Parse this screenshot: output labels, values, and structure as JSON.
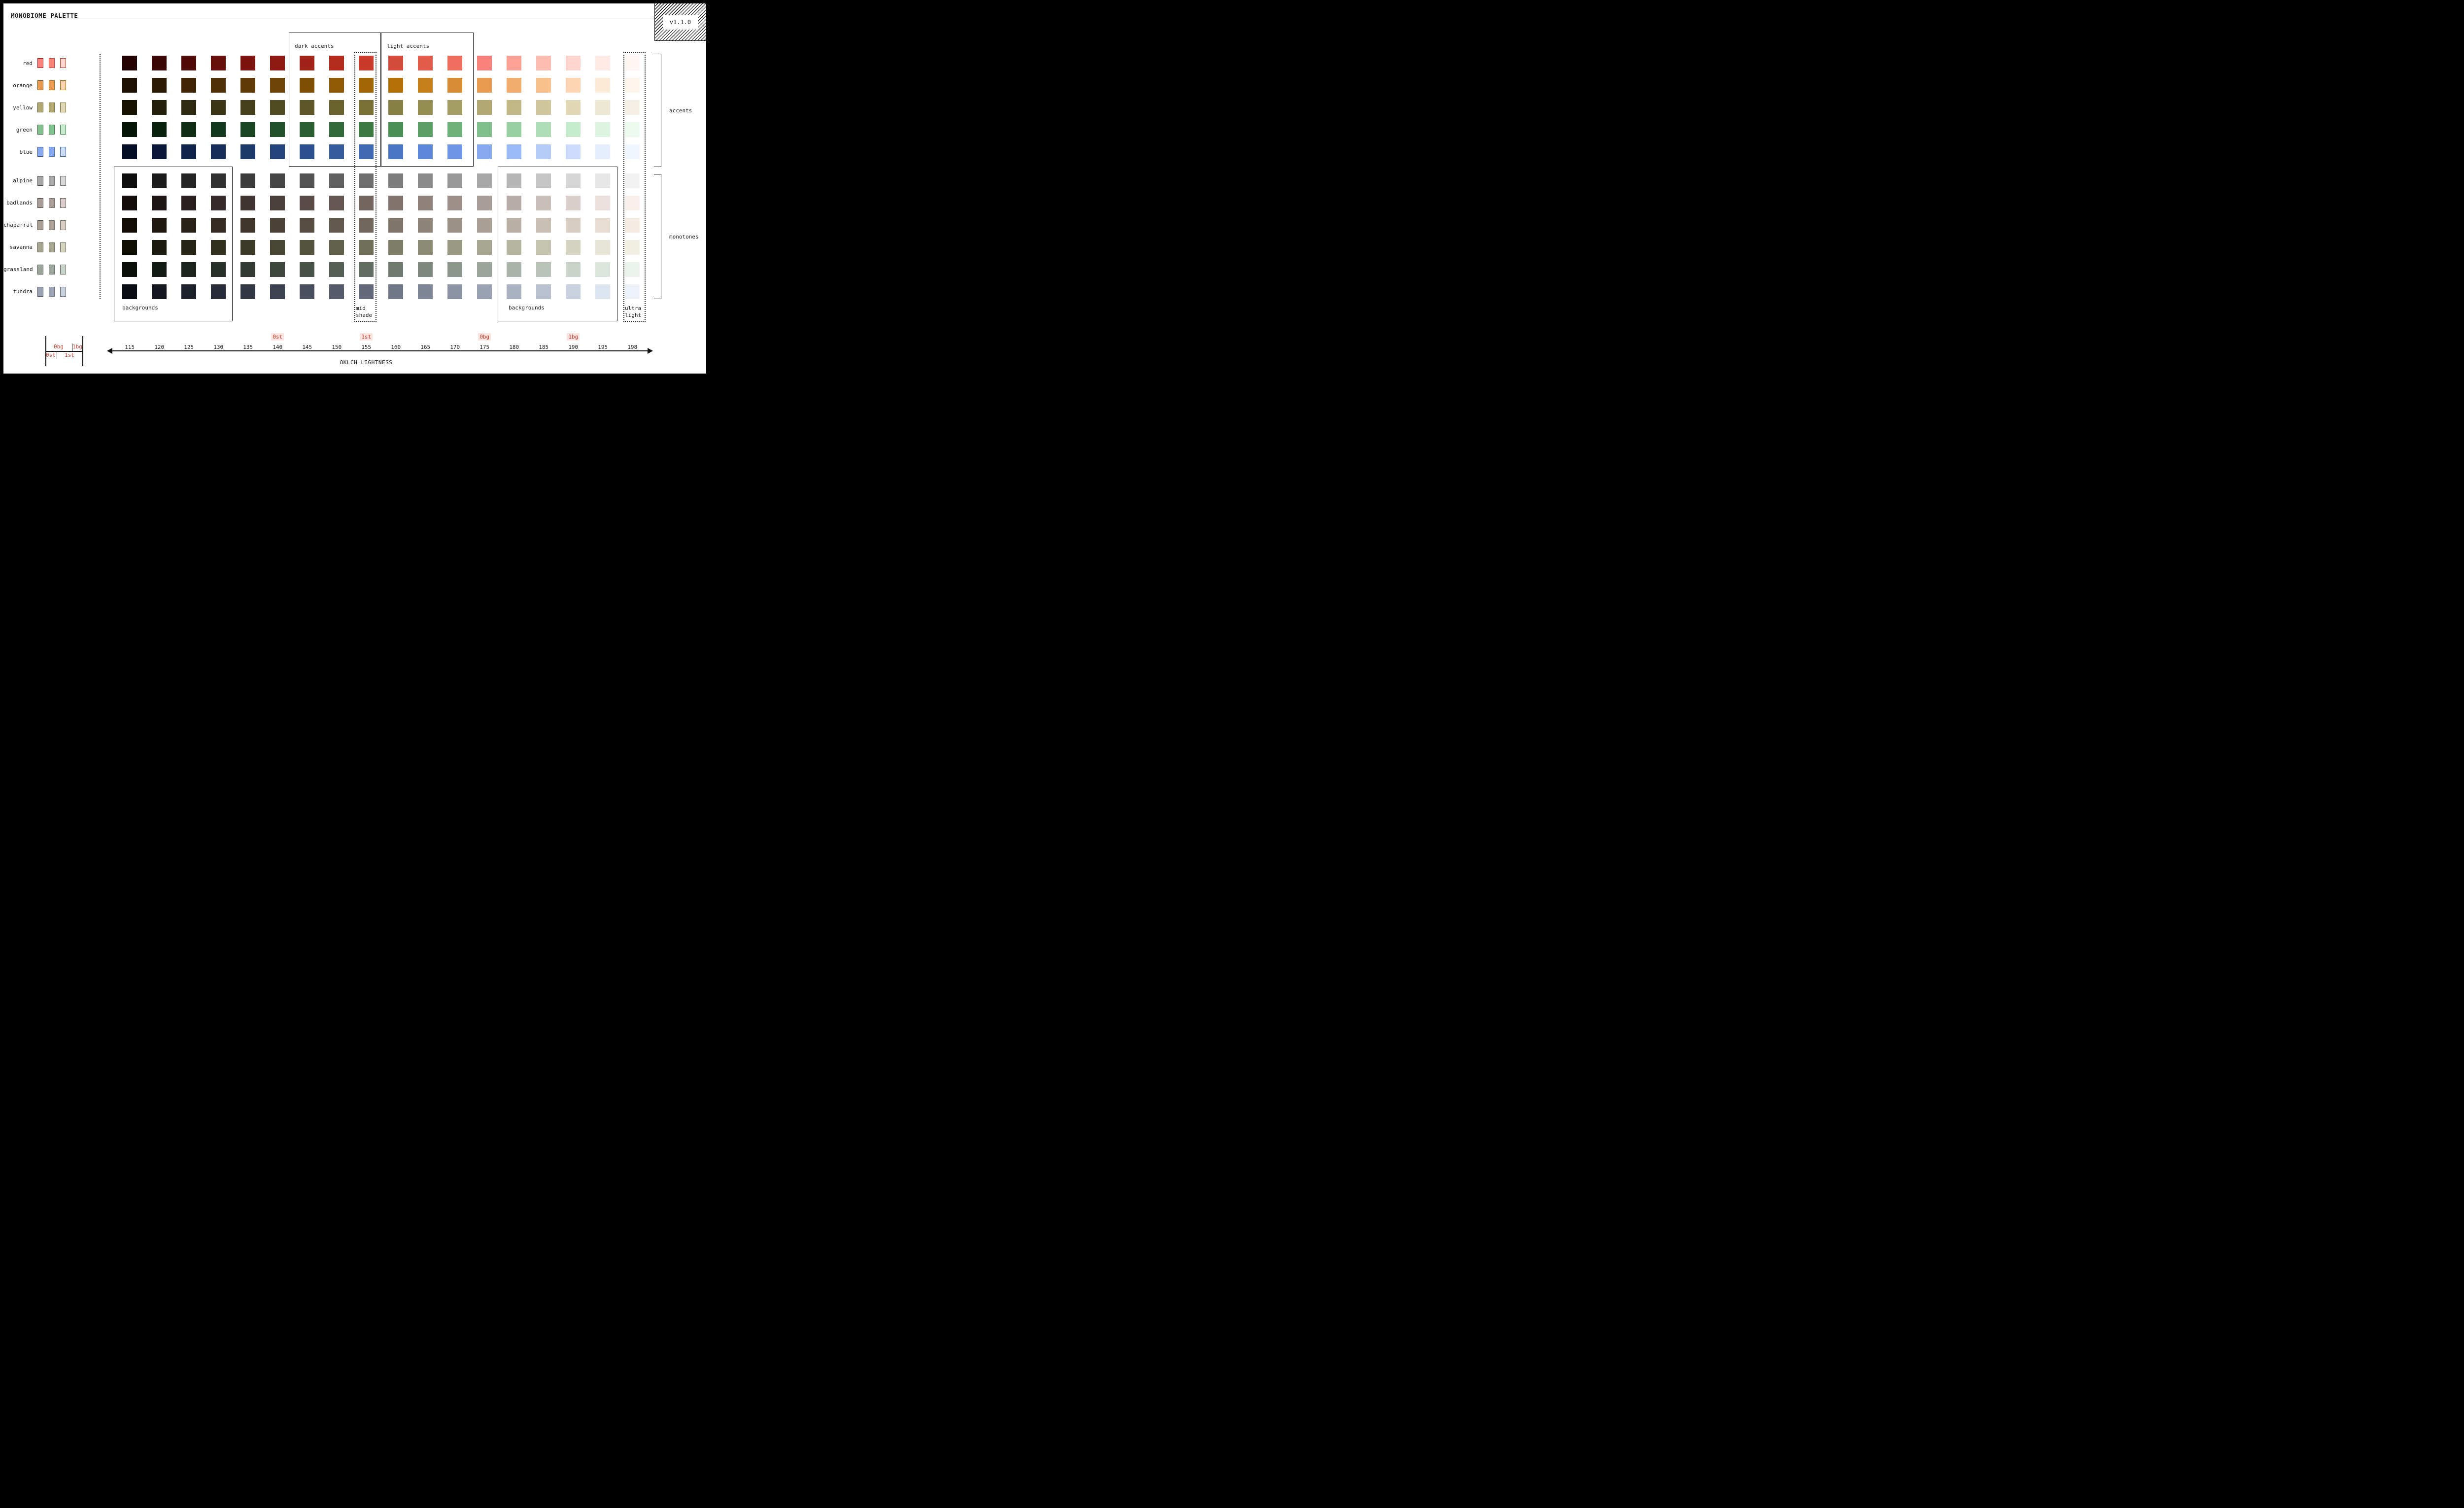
{
  "title": "MONOBIOME PALETTE",
  "version": "v1.1.0",
  "axis": {
    "label": "OKLCH LIGHTNESS",
    "ticks": [
      "115",
      "120",
      "125",
      "130",
      "135",
      "140",
      "145",
      "150",
      "155",
      "160",
      "165",
      "170",
      "175",
      "180",
      "185",
      "190",
      "195",
      "198"
    ],
    "highlights": [
      {
        "label": "0st",
        "tick": "140"
      },
      {
        "label": "1st",
        "tick": "155"
      },
      {
        "label": "0bg",
        "tick": "175"
      },
      {
        "label": "1bg",
        "tick": "190"
      }
    ]
  },
  "groups": {
    "accents_label": "accents",
    "monotones_label": "monotones",
    "dark_accents_label": "dark accents",
    "light_accents_label": "light accents",
    "backgrounds_left_label": "backgrounds",
    "backgrounds_right_label": "backgrounds",
    "mid_shade_label": "mid shade",
    "ultra_light_label": "ultra light"
  },
  "legend": {
    "top": [
      "0bg",
      "1bg"
    ],
    "bottom": [
      "0st",
      "1st"
    ]
  },
  "colors": {
    "ink": "#1a1a1a",
    "highlight_text": "#c5392a",
    "highlight_bg": "#fbe3df",
    "dotted": "#222222"
  },
  "chart_data": {
    "type": "heatmap",
    "title": "MONOBIOME PALETTE",
    "xlabel": "OKLCH LIGHTNESS",
    "x": [
      115,
      120,
      125,
      130,
      135,
      140,
      145,
      150,
      155,
      160,
      165,
      170,
      175,
      180,
      185,
      190,
      195,
      198
    ],
    "key_lightness": {
      "0st": 140,
      "1st": 155,
      "0bg": 175,
      "1bg": 190
    },
    "small_swatches": {
      "fill_cols": [
        175,
        175,
        190
      ],
      "border_cols": [
        140,
        155,
        155
      ]
    },
    "series": [
      {
        "name": "red",
        "group": "accents",
        "colors": [
          "#230303",
          "#3a0706",
          "#500b08",
          "#660f0b",
          "#7c130e",
          "#8e1a12",
          "#a02317",
          "#b42b1e",
          "#c93a2b",
          "#d54b3b",
          "#e25a4a",
          "#ee6f5f",
          "#f9837a",
          "#fda195",
          "#ffbcb1",
          "#ffd5cd",
          "#ffeae6",
          "#fff6f4"
        ]
      },
      {
        "name": "orange",
        "group": "accents",
        "colors": [
          "#1d1102",
          "#2e1b04",
          "#3f2506",
          "#503007",
          "#603a07",
          "#6f4406",
          "#7f4f05",
          "#905a04",
          "#a16503",
          "#b57107",
          "#c67e1b",
          "#d78c33",
          "#e89b51",
          "#f2ad6e",
          "#f9c18e",
          "#fcd5b2",
          "#fdead6",
          "#fdf4ec"
        ]
      },
      {
        "name": "yellow",
        "group": "accents",
        "colors": [
          "#161303",
          "#22200b",
          "#2e2a11",
          "#3a3516",
          "#45401b",
          "#504b21",
          "#5d5727",
          "#6a632d",
          "#787034",
          "#868044",
          "#948e53",
          "#a39c63",
          "#b3a871",
          "#c2b885",
          "#d1c79c",
          "#dfd7b6",
          "#ede8d4",
          "#f4f0e5"
        ]
      },
      {
        "name": "green",
        "group": "accents",
        "colors": [
          "#041607",
          "#09220f",
          "#0f2e15",
          "#15391c",
          "#1b4522",
          "#225129",
          "#2a5e31",
          "#326b3a",
          "#3c7a44",
          "#4a8f56",
          "#5b9f66",
          "#6db07a",
          "#80c08c",
          "#97cfa1",
          "#aeddb6",
          "#c6eacc",
          "#def4e2",
          "#edfaf0"
        ]
      },
      {
        "name": "blue",
        "group": "accents",
        "colors": [
          "#050e27",
          "#0a1837",
          "#102348",
          "#162e59",
          "#1d3969",
          "#24447b",
          "#2c508d",
          "#355c9f",
          "#3f69b2",
          "#4b76c5",
          "#5c86d8",
          "#7097e7",
          "#86a9f0",
          "#9cbaf6",
          "#b4cbfa",
          "#cddcfc",
          "#e4edfd",
          "#f1f6fe"
        ]
      },
      {
        "name": "alpine",
        "group": "monotones",
        "colors": [
          "#0f0f0f",
          "#1b1b1b",
          "#262626",
          "#313132",
          "#3c3c3d",
          "#474748",
          "#535354",
          "#616162",
          "#6f6f70",
          "#7d7d7e",
          "#8b8b8c",
          "#99999a",
          "#a8a8a9",
          "#b7b7b8",
          "#c6c6c7",
          "#d6d6d6",
          "#e7e7e7",
          "#f2f2f2"
        ]
      },
      {
        "name": "badlands",
        "group": "monotones",
        "colors": [
          "#120c0b",
          "#1e1615",
          "#29201f",
          "#342a29",
          "#3f3432",
          "#4b3f3c",
          "#584b48",
          "#655854",
          "#736560",
          "#81736e",
          "#8f817c",
          "#9d8f8a",
          "#a99d9a",
          "#b8aca9",
          "#c9bdba",
          "#d9cecc",
          "#ebe0de",
          "#f8eeec"
        ]
      },
      {
        "name": "chaparral",
        "group": "monotones",
        "colors": [
          "#120e07",
          "#1e1810",
          "#292219",
          "#342c22",
          "#3f372c",
          "#4a4236",
          "#574e42",
          "#645b4f",
          "#72695c",
          "#80766a",
          "#8e8478",
          "#9c9286",
          "#aaa095",
          "#b9afa4",
          "#c8beb3",
          "#d7cdc2",
          "#e8ded4",
          "#f4ebe2"
        ]
      },
      {
        "name": "savanna",
        "group": "monotones",
        "colors": [
          "#100f05",
          "#1b1a0e",
          "#262516",
          "#31301e",
          "#3c3b28",
          "#474633",
          "#54533e",
          "#61604a",
          "#6f6e57",
          "#7d7c64",
          "#8b8a72",
          "#999881",
          "#a7a690",
          "#b6b59f",
          "#c5c4af",
          "#d4d3c0",
          "#e6e5d5",
          "#f0efe2"
        ]
      },
      {
        "name": "grassland",
        "group": "monotones",
        "colors": [
          "#0a0f0a",
          "#141a14",
          "#1e241e",
          "#282f28",
          "#323a33",
          "#3d453d",
          "#495249",
          "#565f56",
          "#636c63",
          "#717a71",
          "#7f887f",
          "#8d968d",
          "#9ba59b",
          "#aab4aa",
          "#b9c3ba",
          "#c9d3c9",
          "#dce5dc",
          "#ebf1eb"
        ]
      },
      {
        "name": "tundra",
        "group": "monotones",
        "colors": [
          "#0a0d14",
          "#141720",
          "#1e222c",
          "#282c38",
          "#323744",
          "#3d4250",
          "#494f5e",
          "#565c6c",
          "#63697a",
          "#707788",
          "#7e8596",
          "#8c93a4",
          "#9aa2b3",
          "#a9b1c2",
          "#b9c1d0",
          "#c9d1df",
          "#dce4ef",
          "#edf2fa"
        ]
      }
    ]
  }
}
